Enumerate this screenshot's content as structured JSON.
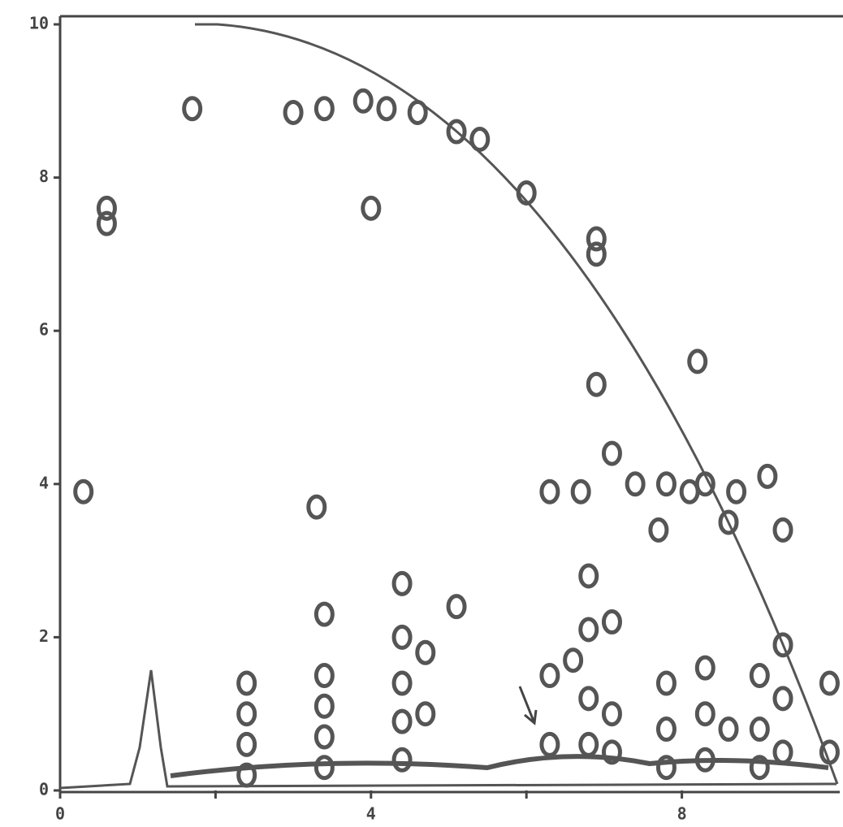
{
  "chart_data": {
    "type": "contour",
    "xlim": [
      0,
      10
    ],
    "ylim": [
      0,
      10
    ],
    "xticks": [
      0,
      4,
      8
    ],
    "xticks_unlabeled": [
      2,
      6
    ],
    "yticks": [
      0,
      2,
      4,
      6,
      8,
      10
    ],
    "color": "#555555",
    "spots": {
      "x": [
        1.7,
        3.0,
        3.4,
        3.9,
        4.2,
        4.6,
        5.1,
        5.4,
        6.0,
        0.6,
        0.6,
        4.0,
        6.9,
        6.9,
        6.9,
        8.2,
        3.3,
        6.3,
        6.7,
        7.4,
        7.8,
        8.1,
        8.3,
        8.7,
        9.1,
        8.6,
        9.3,
        7.7,
        7.1,
        0.3,
        2.4,
        2.4,
        2.4,
        2.4,
        3.4,
        3.4,
        3.4,
        3.4,
        3.4,
        4.4,
        4.4,
        4.4,
        4.4,
        4.4,
        4.7,
        4.7,
        5.1,
        6.3,
        6.3,
        6.8,
        6.8,
        6.6,
        6.8,
        6.8,
        7.1,
        7.1,
        7.1,
        7.8,
        7.8,
        7.8,
        8.3,
        8.3,
        8.3,
        8.6,
        9.0,
        9.0,
        9.0,
        9.3,
        9.3,
        9.3,
        9.9,
        9.9
      ],
      "y": [
        8.9,
        8.85,
        8.9,
        9.0,
        8.9,
        8.85,
        8.6,
        8.5,
        7.8,
        7.6,
        7.4,
        7.6,
        7.2,
        7.0,
        5.3,
        5.6,
        3.7,
        3.9,
        3.9,
        4.0,
        4.0,
        3.9,
        4.0,
        3.9,
        4.1,
        3.5,
        3.4,
        3.4,
        4.4,
        3.9,
        1.4,
        1.0,
        0.6,
        0.2,
        2.3,
        1.5,
        1.1,
        0.7,
        0.3,
        2.7,
        2.0,
        1.4,
        0.9,
        0.4,
        1.8,
        1.0,
        2.4,
        1.5,
        0.6,
        2.8,
        2.1,
        1.7,
        1.2,
        0.6,
        2.2,
        1.0,
        0.5,
        1.4,
        0.8,
        0.3,
        1.6,
        1.0,
        0.4,
        0.8,
        1.5,
        0.8,
        0.3,
        1.9,
        1.2,
        0.5,
        1.4,
        0.5
      ]
    }
  }
}
